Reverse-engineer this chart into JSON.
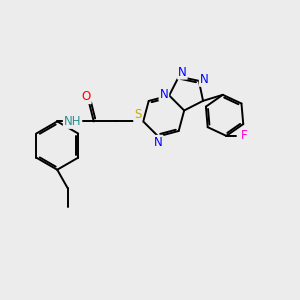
{
  "bg_color": "#ececec",
  "bond_color": "#000000",
  "bond_width": 1.4,
  "dbo": 0.065,
  "atom_colors": {
    "N": "#0000ff",
    "O": "#ff0000",
    "S": "#ccaa00",
    "F": "#ff00cc",
    "NH": "#2a9090",
    "C": "#000000"
  },
  "font_size": 8.5
}
